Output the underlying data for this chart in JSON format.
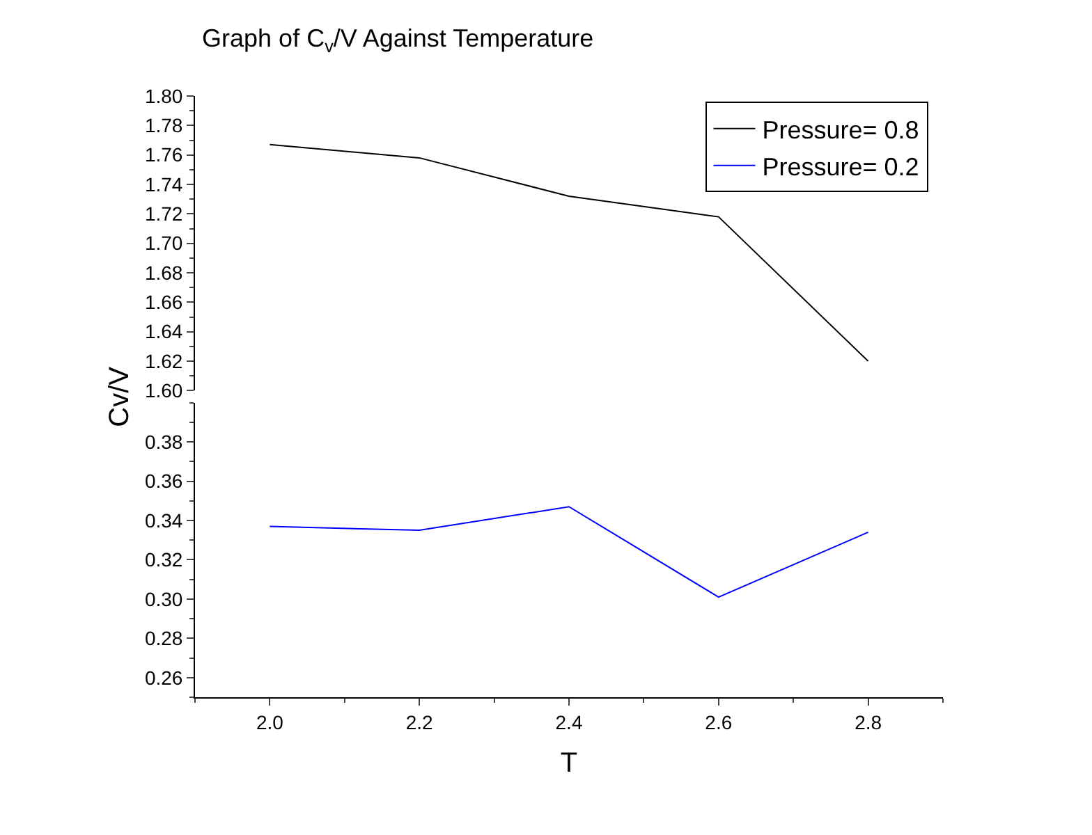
{
  "chart_data": [
    {
      "type": "line",
      "title": "Graph of C$_{v}$/V Against Temperature",
      "ylabel": "Cv/V",
      "x": [
        2.0,
        2.2,
        2.4,
        2.6,
        2.8
      ],
      "ylim": [
        1.6,
        1.8
      ],
      "yticks": [
        {
          "value": 1.6,
          "label": "1.60"
        },
        {
          "value": 1.62,
          "label": "1.62"
        },
        {
          "value": 1.64,
          "label": "1.64"
        },
        {
          "value": 1.66,
          "label": "1.66"
        },
        {
          "value": 1.68,
          "label": "1.68"
        },
        {
          "value": 1.7,
          "label": "1.70"
        },
        {
          "value": 1.72,
          "label": "1.72"
        },
        {
          "value": 1.74,
          "label": "1.74"
        },
        {
          "value": 1.76,
          "label": "1.76"
        },
        {
          "value": 1.78,
          "label": "1.78"
        },
        {
          "value": 1.8,
          "label": "1.80"
        }
      ],
      "tick_labels": "y",
      "legend": "top right",
      "series": [
        {
          "name": "Pressure= 0.8",
          "color": "#000000",
          "values": [
            1.767,
            1.758,
            1.732,
            1.718,
            1.62
          ]
        }
      ]
    },
    {
      "type": "line",
      "xlabel": "T",
      "x": [
        2.0,
        2.2,
        2.4,
        2.6,
        2.8
      ],
      "xlim": [
        1.9,
        2.9
      ],
      "xticks": [
        {
          "value": 2.0,
          "label": "2.0"
        },
        {
          "value": 2.2,
          "label": "2.2"
        },
        {
          "value": 2.4,
          "label": "2.4"
        },
        {
          "value": 2.6,
          "label": "2.6"
        },
        {
          "value": 2.8,
          "label": "2.8"
        }
      ],
      "ylim": [
        0.25,
        0.4
      ],
      "yticks": [
        {
          "value": 0.26,
          "label": "0.26"
        },
        {
          "value": 0.28,
          "label": "0.28"
        },
        {
          "value": 0.3,
          "label": "0.30"
        },
        {
          "value": 0.32,
          "label": "0.32"
        },
        {
          "value": 0.34,
          "label": "0.34"
        },
        {
          "value": 0.36,
          "label": "0.36"
        },
        {
          "value": 0.38,
          "label": "0.38"
        }
      ],
      "series": [
        {
          "name": "Pressure= 0.2",
          "color": "#0000ff",
          "values": [
            0.337,
            0.335,
            0.347,
            0.301,
            0.334
          ]
        }
      ]
    }
  ]
}
